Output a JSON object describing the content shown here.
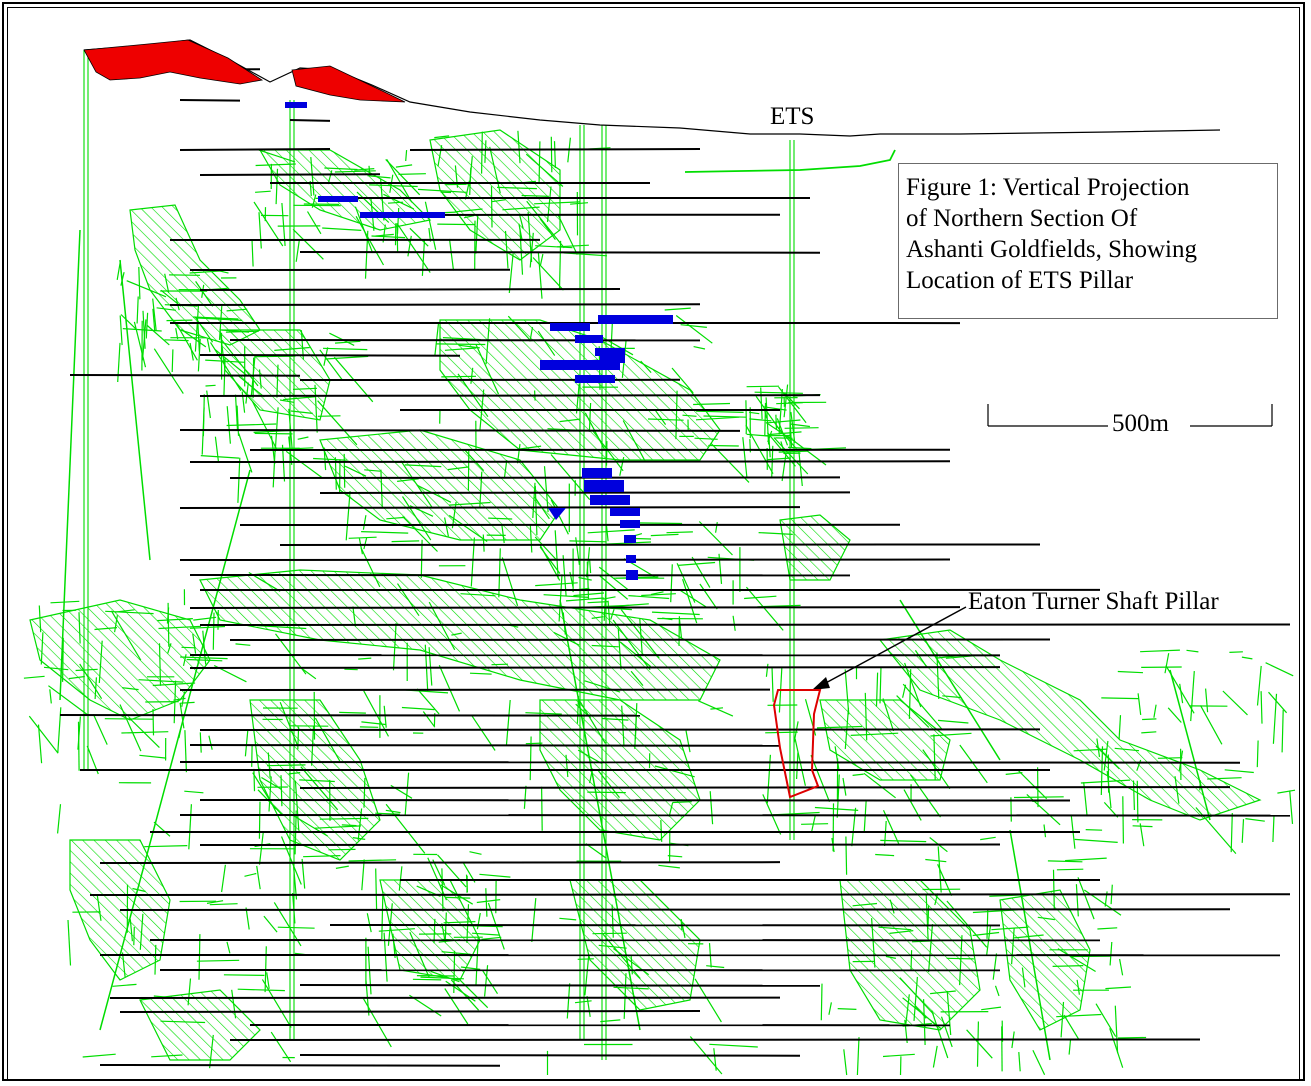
{
  "figure": {
    "caption_lines": [
      "Figure 1:  Vertical Projection",
      "of Northern Section Of",
      "Ashanti Goldfields, Showing",
      "Location of ETS Pillar"
    ],
    "shaft_label": "ETS",
    "scale_label": "500m",
    "pillar_label": "Eaton Turner Shaft Pillar"
  },
  "colors": {
    "workings": "#00dd00",
    "levels": "#000000",
    "surface_pit": "#ee0000",
    "blue_stopes": "#0000dd",
    "pillar_outline": "#dd0000",
    "frame": "#000000"
  }
}
